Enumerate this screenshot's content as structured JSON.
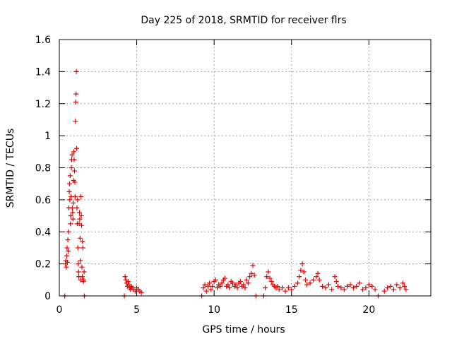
{
  "chart_data": {
    "type": "scatter",
    "title": "Day 225 of 2018, SRMTID for receiver flrs",
    "xlabel": "GPS time / hours",
    "ylabel": "SRMTID / TECUs",
    "xlim": [
      0,
      24
    ],
    "ylim": [
      0,
      1.6
    ],
    "xticks": [
      0,
      5,
      10,
      15,
      20
    ],
    "yticks": [
      0,
      0.2,
      0.4,
      0.6,
      0.8,
      1,
      1.2,
      1.4,
      1.6
    ],
    "ytick_labels": [
      "0",
      "0.2",
      "0.4",
      "0.6",
      "0.8",
      "1",
      "1.2",
      "1.4",
      "1.6"
    ],
    "grid": true,
    "marker": "+",
    "color": "#e00000",
    "series": [
      {
        "name": "SRMTID",
        "points": [
          [
            0.35,
            0.0
          ],
          [
            0.4,
            0.2
          ],
          [
            0.42,
            0.22
          ],
          [
            0.45,
            0.18
          ],
          [
            0.48,
            0.25
          ],
          [
            0.5,
            0.3
          ],
          [
            0.52,
            0.21
          ],
          [
            0.55,
            0.35
          ],
          [
            0.58,
            0.28
          ],
          [
            0.6,
            0.4
          ],
          [
            0.62,
            0.55
          ],
          [
            0.64,
            0.65
          ],
          [
            0.66,
            0.7
          ],
          [
            0.68,
            0.6
          ],
          [
            0.7,
            0.75
          ],
          [
            0.72,
            0.45
          ],
          [
            0.74,
            0.5
          ],
          [
            0.76,
            0.62
          ],
          [
            0.78,
            0.8
          ],
          [
            0.8,
            0.85
          ],
          [
            0.82,
            0.88
          ],
          [
            0.84,
            0.55
          ],
          [
            0.86,
            0.52
          ],
          [
            0.88,
            0.48
          ],
          [
            0.9,
            0.58
          ],
          [
            0.92,
            0.72
          ],
          [
            0.94,
            0.9
          ],
          [
            0.96,
            0.85
          ],
          [
            0.98,
            0.78
          ],
          [
            1.0,
            0.71
          ],
          [
            1.02,
            0.62
          ],
          [
            1.04,
            1.09
          ],
          [
            1.06,
            1.21
          ],
          [
            1.08,
            1.26
          ],
          [
            1.1,
            1.4
          ],
          [
            1.12,
            0.92
          ],
          [
            1.14,
            0.55
          ],
          [
            1.16,
            0.45
          ],
          [
            1.18,
            0.6
          ],
          [
            1.2,
            0.3
          ],
          [
            1.22,
            0.2
          ],
          [
            1.24,
            0.15
          ],
          [
            1.26,
            0.12
          ],
          [
            1.28,
            0.45
          ],
          [
            1.3,
            0.52
          ],
          [
            1.32,
            0.48
          ],
          [
            1.34,
            0.36
          ],
          [
            1.36,
            0.22
          ],
          [
            1.38,
            0.1
          ],
          [
            1.4,
            0.62
          ],
          [
            1.42,
            0.5
          ],
          [
            1.44,
            0.44
          ],
          [
            1.46,
            0.18
          ],
          [
            1.48,
            0.12
          ],
          [
            1.5,
            0.34
          ],
          [
            1.52,
            0.3
          ],
          [
            1.55,
            0.09
          ],
          [
            1.58,
            0.1
          ],
          [
            1.6,
            0.15
          ],
          [
            1.62,
            0.0
          ],
          [
            4.2,
            0.0
          ],
          [
            4.25,
            0.12
          ],
          [
            4.3,
            0.1
          ],
          [
            4.35,
            0.08
          ],
          [
            4.4,
            0.06
          ],
          [
            4.45,
            0.09
          ],
          [
            4.5,
            0.07
          ],
          [
            4.55,
            0.05
          ],
          [
            4.6,
            0.04
          ],
          [
            4.65,
            0.06
          ],
          [
            4.7,
            0.05
          ],
          [
            4.8,
            0.04
          ],
          [
            4.9,
            0.03
          ],
          [
            5.0,
            0.05
          ],
          [
            5.1,
            0.04
          ],
          [
            5.2,
            0.03
          ],
          [
            5.3,
            0.02
          ],
          [
            9.2,
            0.0
          ],
          [
            9.3,
            0.05
          ],
          [
            9.4,
            0.07
          ],
          [
            9.5,
            0.03
          ],
          [
            9.6,
            0.06
          ],
          [
            9.7,
            0.08
          ],
          [
            9.8,
            0.04
          ],
          [
            9.9,
            0.06
          ],
          [
            10.0,
            0.09
          ],
          [
            10.1,
            0.1
          ],
          [
            10.2,
            0.05
          ],
          [
            10.3,
            0.07
          ],
          [
            10.4,
            0.06
          ],
          [
            10.5,
            0.08
          ],
          [
            10.6,
            0.1
          ],
          [
            10.7,
            0.11
          ],
          [
            10.8,
            0.06
          ],
          [
            10.9,
            0.07
          ],
          [
            11.0,
            0.05
          ],
          [
            11.1,
            0.09
          ],
          [
            11.2,
            0.08
          ],
          [
            11.3,
            0.06
          ],
          [
            11.4,
            0.07
          ],
          [
            11.5,
            0.05
          ],
          [
            11.6,
            0.08
          ],
          [
            11.7,
            0.09
          ],
          [
            11.8,
            0.06
          ],
          [
            11.9,
            0.07
          ],
          [
            12.0,
            0.05
          ],
          [
            12.1,
            0.1
          ],
          [
            12.2,
            0.08
          ],
          [
            12.3,
            0.12
          ],
          [
            12.4,
            0.14
          ],
          [
            12.5,
            0.19
          ],
          [
            12.6,
            0.13
          ],
          [
            12.7,
            0.0
          ],
          [
            13.2,
            0.0
          ],
          [
            13.3,
            0.05
          ],
          [
            13.4,
            0.12
          ],
          [
            13.5,
            0.15
          ],
          [
            13.6,
            0.11
          ],
          [
            13.7,
            0.09
          ],
          [
            13.8,
            0.07
          ],
          [
            13.9,
            0.06
          ],
          [
            14.0,
            0.05
          ],
          [
            14.1,
            0.06
          ],
          [
            14.2,
            0.04
          ],
          [
            14.4,
            0.05
          ],
          [
            14.6,
            0.03
          ],
          [
            14.8,
            0.05
          ],
          [
            15.0,
            0.04
          ],
          [
            15.2,
            0.06
          ],
          [
            15.4,
            0.08
          ],
          [
            15.5,
            0.12
          ],
          [
            15.6,
            0.16
          ],
          [
            15.7,
            0.2
          ],
          [
            15.8,
            0.15
          ],
          [
            15.9,
            0.1
          ],
          [
            16.0,
            0.07
          ],
          [
            16.2,
            0.08
          ],
          [
            16.4,
            0.1
          ],
          [
            16.6,
            0.12
          ],
          [
            16.7,
            0.14
          ],
          [
            16.8,
            0.1
          ],
          [
            17.0,
            0.06
          ],
          [
            17.2,
            0.05
          ],
          [
            17.4,
            0.07
          ],
          [
            17.6,
            0.04
          ],
          [
            17.8,
            0.12
          ],
          [
            17.9,
            0.09
          ],
          [
            18.0,
            0.06
          ],
          [
            18.2,
            0.05
          ],
          [
            18.4,
            0.04
          ],
          [
            18.6,
            0.06
          ],
          [
            18.8,
            0.07
          ],
          [
            19.0,
            0.05
          ],
          [
            19.2,
            0.06
          ],
          [
            19.4,
            0.08
          ],
          [
            19.6,
            0.04
          ],
          [
            19.8,
            0.05
          ],
          [
            20.0,
            0.07
          ],
          [
            20.2,
            0.06
          ],
          [
            20.4,
            0.04
          ],
          [
            20.6,
            0.0
          ],
          [
            21.0,
            0.03
          ],
          [
            21.2,
            0.05
          ],
          [
            21.4,
            0.06
          ],
          [
            21.6,
            0.04
          ],
          [
            21.8,
            0.07
          ],
          [
            22.0,
            0.05
          ],
          [
            22.2,
            0.08
          ],
          [
            22.3,
            0.06
          ],
          [
            22.4,
            0.04
          ]
        ]
      }
    ]
  }
}
